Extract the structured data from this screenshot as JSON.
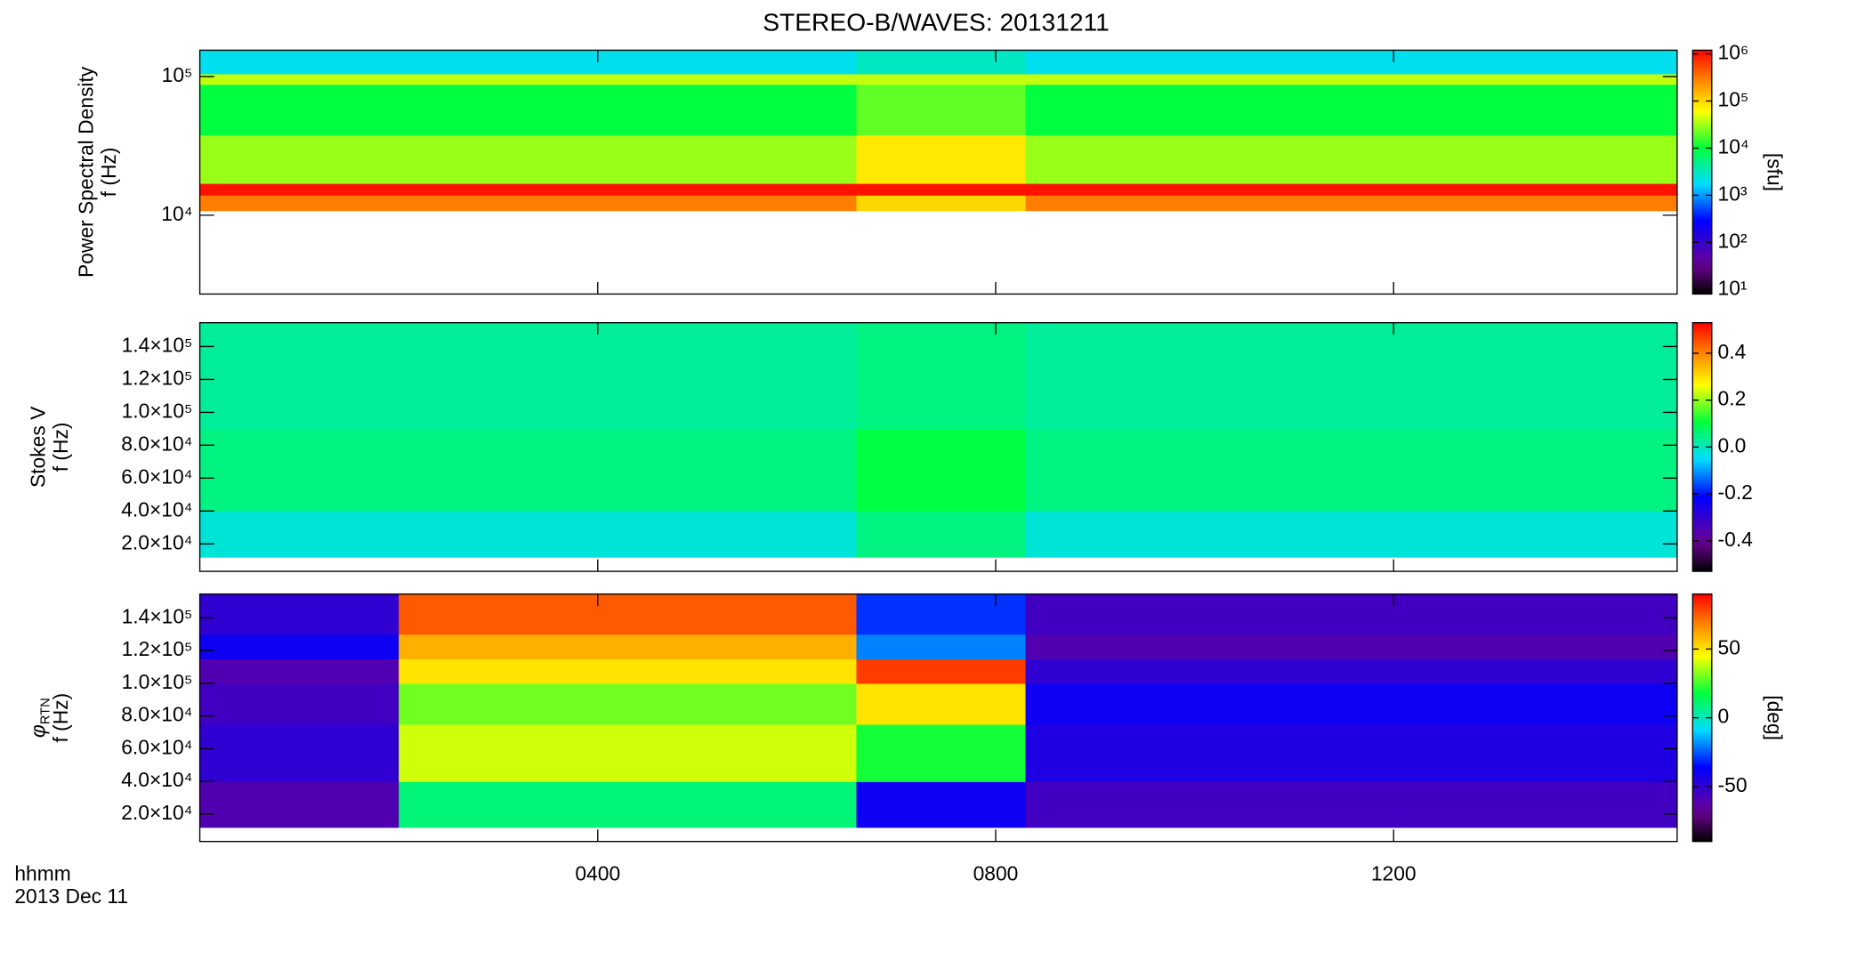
{
  "chart_data": [
    {
      "type": "spectrogram",
      "title": "STEREO-B/WAVES: 20131211",
      "ylabel": "Power Spectral Density",
      "ylabel2": "f (Hz)",
      "ylog": true,
      "ylim": [
        2700,
        155000
      ],
      "yticks": [
        {
          "value": 10000,
          "label": "10⁴"
        },
        {
          "value": 100000,
          "label": "10⁵"
        }
      ],
      "xlim": [
        0,
        14.85
      ],
      "x_bins": [
        0,
        6.6,
        8.3,
        14.85
      ],
      "y_bins": [
        10800,
        14000,
        17000,
        38000,
        88000,
        105000,
        155000
      ],
      "values": [
        [
          300000,
          100000,
          300000
        ],
        [
          1000000,
          1000000,
          1000000
        ],
        [
          30000,
          80000,
          30000
        ],
        [
          10000,
          20000,
          10000
        ],
        [
          40000,
          40000,
          40000
        ],
        [
          2000,
          3000,
          2000
        ]
      ],
      "clog": true,
      "clim": [
        8,
        1200000
      ],
      "cticks": [
        {
          "value": 10,
          "label": "10¹"
        },
        {
          "value": 100,
          "label": "10²"
        },
        {
          "value": 1000,
          "label": "10³"
        },
        {
          "value": 10000,
          "label": "10⁴"
        },
        {
          "value": 100000,
          "label": "10⁵"
        },
        {
          "value": 1000000,
          "label": "10⁶"
        }
      ],
      "clabel": "[sfu]"
    },
    {
      "type": "spectrogram",
      "ylabel": "Stokes V",
      "ylabel2": "f (Hz)",
      "ylog": false,
      "ylim": [
        3300,
        154500
      ],
      "yticks": [
        {
          "value": 20000,
          "label": "2.0×10⁴"
        },
        {
          "value": 40000,
          "label": "4.0×10⁴"
        },
        {
          "value": 60000,
          "label": "6.0×10⁴"
        },
        {
          "value": 80000,
          "label": "8.0×10⁴"
        },
        {
          "value": 100000,
          "label": "1.0×10⁵"
        },
        {
          "value": 120000,
          "label": "1.2×10⁵"
        },
        {
          "value": 140000,
          "label": "1.4×10⁵"
        }
      ],
      "xlim": [
        0,
        14.85
      ],
      "x_bins": [
        0,
        6.6,
        8.3,
        14.85
      ],
      "y_bins": [
        12000,
        40000,
        90000,
        154500
      ],
      "values": [
        [
          -0.02,
          0.05,
          -0.02
        ],
        [
          0.05,
          0.1,
          0.05
        ],
        [
          0.03,
          0.05,
          0.03
        ]
      ],
      "clog": false,
      "clim": [
        -0.53,
        0.53
      ],
      "cticks": [
        {
          "value": -0.4,
          "label": "-0.4"
        },
        {
          "value": -0.2,
          "label": "-0.2"
        },
        {
          "value": 0,
          "label": "0.0"
        },
        {
          "value": 0.2,
          "label": "0.2"
        },
        {
          "value": 0.4,
          "label": "0.4"
        }
      ]
    },
    {
      "type": "spectrogram",
      "ylabel": {
        "symbol": "φ",
        "subscript": "RTN"
      },
      "ylabel2": "f (Hz)",
      "ylog": false,
      "ylim": [
        3300,
        154500
      ],
      "yticks": [
        {
          "value": 20000,
          "label": "2.0×10⁴"
        },
        {
          "value": 40000,
          "label": "4.0×10⁴"
        },
        {
          "value": 60000,
          "label": "6.0×10⁴"
        },
        {
          "value": 80000,
          "label": "8.0×10⁴"
        },
        {
          "value": 100000,
          "label": "1.0×10⁵"
        },
        {
          "value": 120000,
          "label": "1.2×10⁵"
        },
        {
          "value": 140000,
          "label": "1.4×10⁵"
        }
      ],
      "xlim": [
        0,
        14.85
      ],
      "xticks": [
        {
          "value": 4,
          "label": "0400"
        },
        {
          "value": 8,
          "label": "0800"
        },
        {
          "value": 12,
          "label": "1200"
        }
      ],
      "xlabel": "hhmm",
      "xlabel2": "2013 Dec 11",
      "x_bins": [
        0,
        2.0,
        6.6,
        8.3,
        14.85
      ],
      "y_bins": [
        12000,
        40000,
        75000,
        100000,
        115000,
        130000,
        154500
      ],
      "values": [
        [
          -60,
          10,
          -40,
          -55
        ],
        [
          -50,
          40,
          20,
          -45
        ],
        [
          -55,
          30,
          50,
          -40
        ],
        [
          -60,
          50,
          80,
          -50
        ],
        [
          -40,
          60,
          -20,
          -60
        ],
        [
          -50,
          75,
          -30,
          -55
        ]
      ],
      "clog": false,
      "clim": [
        -90,
        90
      ],
      "cticks": [
        {
          "value": -50,
          "label": "-50"
        },
        {
          "value": 0,
          "label": "0"
        },
        {
          "value": 50,
          "label": "50"
        }
      ],
      "clabel": "[deg]"
    }
  ]
}
